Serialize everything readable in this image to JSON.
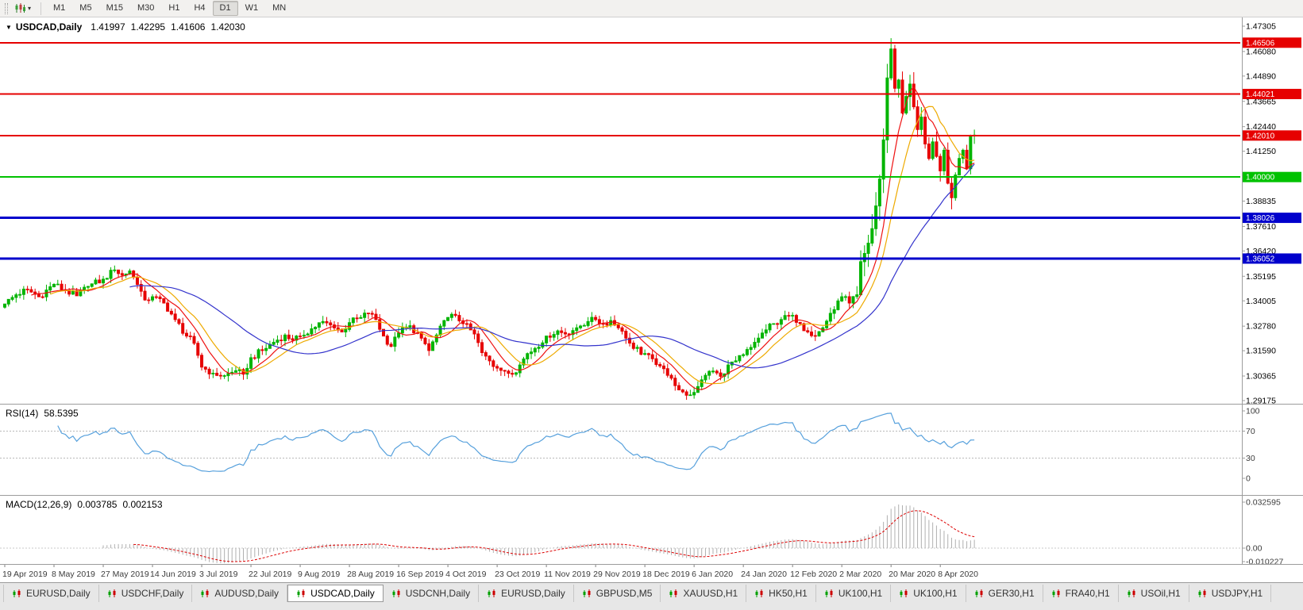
{
  "toolbar": {
    "chart_type_icon": "candlestick-chart-icon",
    "dropdown_icon": "▾",
    "timeframes": [
      {
        "label": "M1",
        "active": false
      },
      {
        "label": "M5",
        "active": false
      },
      {
        "label": "M15",
        "active": false
      },
      {
        "label": "M30",
        "active": false
      },
      {
        "label": "H1",
        "active": false
      },
      {
        "label": "H4",
        "active": false
      },
      {
        "label": "D1",
        "active": true
      },
      {
        "label": "W1",
        "active": false
      },
      {
        "label": "MN",
        "active": false
      }
    ]
  },
  "chart_header": {
    "collapse_icon": "▼",
    "symbol": "USDCAD,Daily",
    "open": "1.41997",
    "high": "1.42295",
    "low": "1.41606",
    "close": "1.42030"
  },
  "rsi_header": {
    "name": "RSI(14)",
    "value": "58.5395"
  },
  "macd_header": {
    "name": "MACD(12,26,9)",
    "value1": "0.003785",
    "value2": "0.002153"
  },
  "tabs": {
    "icon": "mini-candlestick-icon",
    "items": [
      {
        "label": "EURUSD,Daily",
        "active": false
      },
      {
        "label": "USDCHF,Daily",
        "active": false
      },
      {
        "label": "AUDUSD,Daily",
        "active": false
      },
      {
        "label": "USDCAD,Daily",
        "active": true
      },
      {
        "label": "USDCNH,Daily",
        "active": false
      },
      {
        "label": "EURUSD,Daily",
        "active": false
      },
      {
        "label": "GBPUSD,M5",
        "active": false
      },
      {
        "label": "XAUUSD,H1",
        "active": false
      },
      {
        "label": "HK50,H1",
        "active": false
      },
      {
        "label": "UK100,H1",
        "active": false
      },
      {
        "label": "UK100,H1",
        "active": false
      },
      {
        "label": "GER30,H1",
        "active": false
      },
      {
        "label": "FRA40,H1",
        "active": false
      },
      {
        "label": "USOil,H1",
        "active": false
      },
      {
        "label": "USDJPY,H1",
        "active": false
      }
    ]
  },
  "chart_data": {
    "type": "candlestick",
    "symbol": "USDCAD",
    "timeframe": "Daily",
    "bars": 257,
    "bar_spacing": 4.77,
    "last_candle": {
      "open": 1.41997,
      "high": 1.42295,
      "low": 1.41606,
      "close": 1.4203
    },
    "peak": {
      "index": 234,
      "high": 1.4669
    },
    "price_axis": {
      "ticks": [
        "1.47305",
        "1.46080",
        "1.44890",
        "1.43665",
        "1.42440",
        "1.41250",
        "1.40025",
        "1.38835",
        "1.37610",
        "1.36420",
        "1.35195",
        "1.34005",
        "1.32780",
        "1.31590",
        "1.30365",
        "1.29175"
      ]
    },
    "levels": [
      {
        "value": 1.46506,
        "label": "1.46506",
        "color": "#e60000",
        "width": 2
      },
      {
        "value": 1.44021,
        "label": "1.44021",
        "color": "#e60000",
        "width": 2
      },
      {
        "value": 1.4201,
        "label": "1.42010",
        "color": "#e60000",
        "width": 2
      },
      {
        "value": 1.4,
        "label": "1.40000",
        "color": "#00c200",
        "width": 2
      },
      {
        "value": 1.38026,
        "label": "1.38026",
        "color": "#0000cc",
        "width": 3
      },
      {
        "value": 1.36052,
        "label": "1.36052",
        "color": "#0000cc",
        "width": 3
      }
    ],
    "x_axis": {
      "step": 13,
      "labels": [
        "19 Apr 2019",
        "8 May 2019",
        "27 May 2019",
        "14 Jun 2019",
        "3 Jul 2019",
        "22 Jul 2019",
        "9 Aug 2019",
        "28 Aug 2019",
        "16 Sep 2019",
        "4 Oct 2019",
        "23 Oct 2019",
        "11 Nov 2019",
        "29 Nov 2019",
        "18 Dec 2019",
        "6 Jan 2020",
        "24 Jan 2020",
        "12 Feb 2020",
        "2 Mar 2020",
        "20 Mar 2020",
        "8 Apr 2020"
      ]
    },
    "colors": {
      "up": "#00b400",
      "down": "#e60000",
      "background": "#ffffff",
      "axis_text": "#000000",
      "panel_border": "#9c9c9c"
    },
    "moving_averages": [
      {
        "period": 8,
        "color": "#ee1111"
      },
      {
        "period": 13,
        "color": "#eeaa00"
      },
      {
        "period": 34,
        "color": "#3333cc"
      }
    ],
    "close_path": [
      [
        0,
        1.3385
      ],
      [
        3,
        1.343
      ],
      [
        6,
        1.3455
      ],
      [
        9,
        1.342
      ],
      [
        13,
        1.348
      ],
      [
        16,
        1.345
      ],
      [
        19,
        1.3425
      ],
      [
        22,
        1.347
      ],
      [
        26,
        1.3505
      ],
      [
        29,
        1.355
      ],
      [
        31,
        1.3525
      ],
      [
        33,
        1.3545
      ],
      [
        35,
        1.348
      ],
      [
        37,
        1.3405
      ],
      [
        39,
        1.342
      ],
      [
        42,
        1.339
      ],
      [
        45,
        1.331
      ],
      [
        48,
        1.323
      ],
      [
        50,
        1.3195
      ],
      [
        52,
        1.308
      ],
      [
        55,
        1.305
      ],
      [
        58,
        1.3038
      ],
      [
        61,
        1.3062
      ],
      [
        63,
        1.3045
      ],
      [
        65,
        1.3125
      ],
      [
        68,
        1.316
      ],
      [
        71,
        1.32
      ],
      [
        74,
        1.3235
      ],
      [
        76,
        1.321
      ],
      [
        78,
        1.323
      ],
      [
        81,
        1.3265
      ],
      [
        84,
        1.33
      ],
      [
        87,
        1.327
      ],
      [
        89,
        1.325
      ],
      [
        91,
        1.3295
      ],
      [
        94,
        1.332
      ],
      [
        96,
        1.334
      ],
      [
        98,
        1.331
      ],
      [
        100,
        1.323
      ],
      [
        102,
        1.318
      ],
      [
        104,
        1.3245
      ],
      [
        107,
        1.328
      ],
      [
        110,
        1.322
      ],
      [
        112,
        1.316
      ],
      [
        114,
        1.3235
      ],
      [
        117,
        1.332
      ],
      [
        119,
        1.333
      ],
      [
        121,
        1.329
      ],
      [
        124,
        1.324
      ],
      [
        126,
        1.315
      ],
      [
        128,
        1.311
      ],
      [
        130,
        1.3075
      ],
      [
        132,
        1.306
      ],
      [
        134,
        1.3045
      ],
      [
        136,
        1.309
      ],
      [
        138,
        1.3145
      ],
      [
        140,
        1.317
      ],
      [
        143,
        1.323
      ],
      [
        146,
        1.3255
      ],
      [
        148,
        1.324
      ],
      [
        151,
        1.327
      ],
      [
        154,
        1.33
      ],
      [
        156,
        1.331
      ],
      [
        158,
        1.329
      ],
      [
        160,
        1.3305
      ],
      [
        162,
        1.327
      ],
      [
        164,
        1.322
      ],
      [
        166,
        1.317
      ],
      [
        169,
        1.3145
      ],
      [
        171,
        1.312
      ],
      [
        173,
        1.3085
      ],
      [
        175,
        1.304
      ],
      [
        177,
        1.299
      ],
      [
        179,
        1.296
      ],
      [
        181,
        1.2945
      ],
      [
        183,
        1.2985
      ],
      [
        185,
        1.304
      ],
      [
        187,
        1.306
      ],
      [
        189,
        1.3035
      ],
      [
        191,
        1.309
      ],
      [
        193,
        1.311
      ],
      [
        195,
        1.314
      ],
      [
        197,
        1.3175
      ],
      [
        199,
        1.322
      ],
      [
        201,
        1.326
      ],
      [
        203,
        1.329
      ],
      [
        205,
        1.331
      ],
      [
        208,
        1.333
      ],
      [
        210,
        1.329
      ],
      [
        212,
        1.325
      ],
      [
        214,
        1.323
      ],
      [
        216,
        1.327
      ],
      [
        218,
        1.334
      ],
      [
        220,
        1.34
      ],
      [
        221,
        1.342
      ],
      [
        223,
        1.339
      ],
      [
        225,
        1.343
      ],
      [
        226,
        1.359
      ],
      [
        227,
        1.363
      ],
      [
        228,
        1.368
      ],
      [
        229,
        1.375
      ],
      [
        230,
        1.386
      ],
      [
        231,
        1.399
      ],
      [
        232,
        1.418
      ],
      [
        233,
        1.448
      ],
      [
        234,
        1.462
      ],
      [
        235,
        1.443
      ],
      [
        236,
        1.447
      ],
      [
        237,
        1.431
      ],
      [
        238,
        1.439
      ],
      [
        239,
        1.445
      ],
      [
        240,
        1.434
      ],
      [
        241,
        1.423
      ],
      [
        242,
        1.429
      ],
      [
        243,
        1.416
      ],
      [
        244,
        1.409
      ],
      [
        245,
        1.417
      ],
      [
        246,
        1.41
      ],
      [
        247,
        1.403
      ],
      [
        248,
        1.413
      ],
      [
        249,
        1.397
      ],
      [
        250,
        1.39
      ],
      [
        251,
        1.401
      ],
      [
        252,
        1.409
      ],
      [
        253,
        1.413
      ],
      [
        254,
        1.404
      ],
      [
        255,
        1.42
      ],
      [
        256,
        1.4203
      ]
    ],
    "indicators": {
      "rsi": {
        "name": "RSI(14)",
        "period": 14,
        "current": "58.5395",
        "color": "#56a0dc",
        "levels": [
          70,
          30
        ],
        "axis_labels": [
          "100",
          "70",
          "30",
          "0"
        ],
        "range": [
          0,
          100
        ]
      },
      "macd": {
        "name": "MACD(12,26,9)",
        "fast": 12,
        "slow": 26,
        "signal": 9,
        "current": [
          "0.003785",
          "0.002153"
        ],
        "histogram_color": "#b0b0b0",
        "signal_color": "#dd0000",
        "axis_labels": [
          "0.032595",
          "0.00",
          "-0.010227"
        ]
      }
    }
  }
}
